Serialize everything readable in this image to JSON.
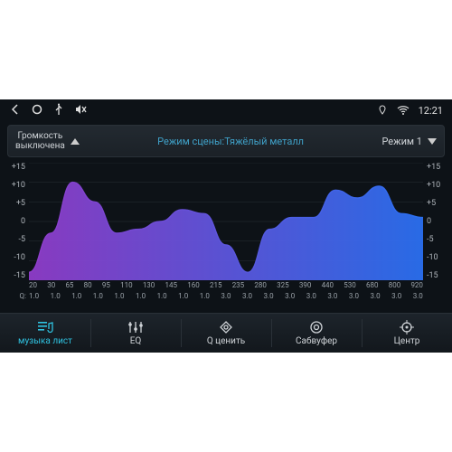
{
  "status": {
    "time": "12:21"
  },
  "volume": {
    "line1": "Громкость",
    "line2": "выключена"
  },
  "scene": {
    "prefix": "Режим сцены:",
    "value": "Тяжёлый металл"
  },
  "mode": {
    "label": "Режим 1"
  },
  "chart": {
    "type": "area",
    "ylim": [
      -15,
      15
    ],
    "ytick_labels": [
      "+15",
      "+10",
      "+5",
      "0",
      "-5",
      "-10",
      "-15"
    ],
    "x_labels": [
      "20",
      "30",
      "65",
      "80",
      "95",
      "110",
      "130",
      "145",
      "160",
      "215",
      "235",
      "280",
      "325",
      "390",
      "440",
      "530",
      "680",
      "800",
      "920"
    ],
    "values": [
      -13,
      -3,
      10,
      5,
      -3,
      -2,
      0,
      3,
      2,
      -6,
      -13,
      -2,
      1,
      1,
      8,
      6,
      9,
      2,
      1
    ],
    "gradient_from": "#8f3cc9",
    "gradient_to": "#2a6ff0",
    "background": "#0d1217",
    "grid_color": "#2a3138"
  },
  "q": {
    "label": "Q:",
    "values": [
      "1.0",
      "1.0",
      "1.0",
      "1.0",
      "1.0",
      "1.0",
      "1.0",
      "1.0",
      "1.0",
      "3.0",
      "3.0",
      "3.0",
      "3.0",
      "3.0",
      "3.0",
      "3.0",
      "3.0",
      "3.0",
      "3.0"
    ]
  },
  "nav": {
    "items": [
      {
        "label": "музыка лист",
        "icon": "playlist-icon",
        "active": true
      },
      {
        "label": "EQ",
        "icon": "eq-icon",
        "active": false
      },
      {
        "label": "Q ценить",
        "icon": "q-icon",
        "active": false
      },
      {
        "label": "Сабвуфер",
        "icon": "subwoofer-icon",
        "active": false
      },
      {
        "label": "Центр",
        "icon": "center-icon",
        "active": false
      }
    ]
  }
}
